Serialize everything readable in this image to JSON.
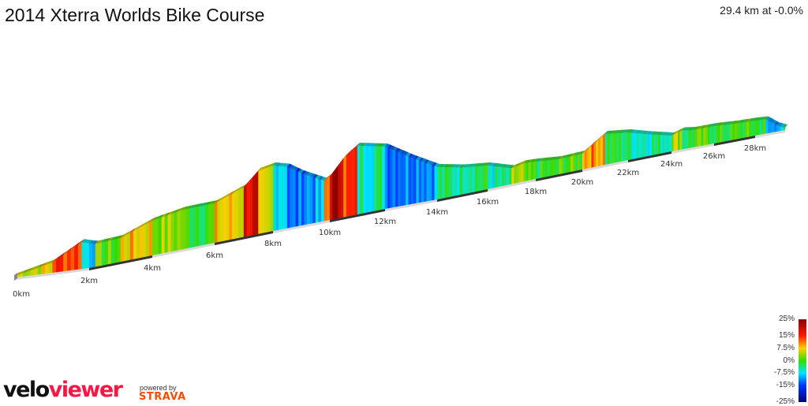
{
  "header": {
    "title": "2014 Xterra Worlds Bike Course",
    "summary": "29.4 km at -0.0%"
  },
  "chart_data": {
    "type": "area",
    "title": "2014 Xterra Worlds Bike Course",
    "style": "3d elevation profile coloured by gradient",
    "x_unit": "km",
    "x_range": [
      0,
      29.4
    ],
    "x_ticks": [
      "0km",
      "2km",
      "4km",
      "6km",
      "8km",
      "10km",
      "12km",
      "14km",
      "16km",
      "18km",
      "20km",
      "22km",
      "24km",
      "26km",
      "28km"
    ],
    "distance_km": [
      0,
      1,
      1.8,
      2.2,
      3,
      4,
      5,
      6,
      7,
      7.5,
      8,
      8.5,
      9,
      9.8,
      10,
      10.5,
      11,
      12,
      13,
      14,
      15,
      16,
      17,
      17.5,
      18,
      19,
      20,
      21,
      22,
      23,
      24,
      24.5,
      25,
      26,
      27,
      28,
      28.5,
      29,
      29.4
    ],
    "elevation_relative": [
      2,
      13,
      34,
      29,
      30,
      44,
      50,
      50,
      63,
      80,
      83,
      78,
      66,
      51,
      55,
      75,
      87,
      79,
      59,
      41,
      34,
      30,
      20,
      23,
      22,
      19,
      20,
      39,
      35,
      27,
      20,
      24,
      22,
      22,
      20,
      19,
      18,
      8,
      3
    ],
    "legend": {
      "title": "gradient",
      "labels": [
        "25%",
        "15%",
        "7.5%",
        "0%",
        "-7.5%",
        "-15%",
        "-25%"
      ],
      "stops": [
        {
          "value": 25,
          "color": "#8b0000"
        },
        {
          "value": 15,
          "color": "#ff1a00"
        },
        {
          "value": 7.5,
          "color": "#ffd000"
        },
        {
          "value": 0,
          "color": "#33dd00"
        },
        {
          "value": -7.5,
          "color": "#00e5ff"
        },
        {
          "value": -15,
          "color": "#0033ff"
        },
        {
          "value": -25,
          "color": "#00007a"
        }
      ]
    }
  },
  "branding": {
    "logo_part1": "velo",
    "logo_part2": "viewer",
    "powered_by": "powered by",
    "strava": "STRAVA"
  }
}
